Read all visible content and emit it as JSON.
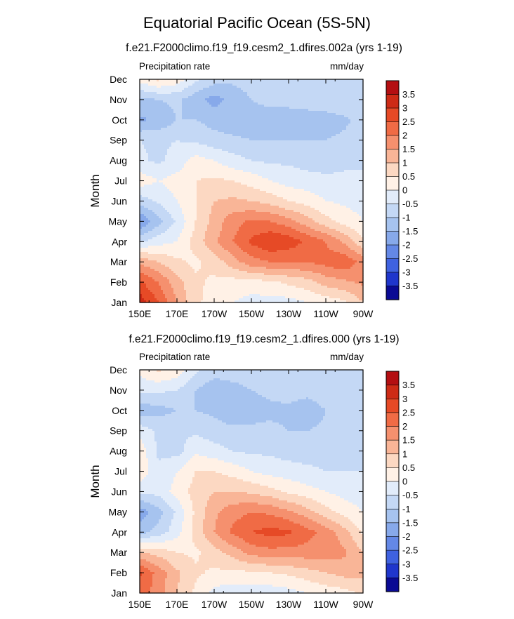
{
  "figure": {
    "title": "Equatorial Pacific Ocean (5S-5N)"
  },
  "colorbar": {
    "tick_labels": [
      "3.5",
      "3",
      "2.5",
      "2",
      "1.5",
      "1",
      "0.5",
      "0",
      "-0.5",
      "-1",
      "-1.5",
      "-2",
      "-2.5",
      "-3",
      "-3.5"
    ],
    "colors": [
      "#b40f12",
      "#cd2b16",
      "#e64a26",
      "#f06b45",
      "#f5906e",
      "#f9b597",
      "#fcd8c2",
      "#fff1e6",
      "#e2ecfa",
      "#c4d8f5",
      "#a6c3ef",
      "#87a9ea",
      "#6488e6",
      "#3f62e0",
      "#1f36cc",
      "#0a0a94"
    ]
  },
  "chart_data": [
    {
      "type": "heatmap",
      "title": "f.e21.F2000climo.f19_f19.cesm2_1.dfires.002a (yrs 1-19)",
      "field_label": "Precipitation rate",
      "units": "mm/day",
      "xlabel": "",
      "ylabel": "Month",
      "x_ticks": [
        "150E",
        "170E",
        "170W",
        "150W",
        "130W",
        "110W",
        "90W"
      ],
      "y_ticks": [
        "Jan",
        "Feb",
        "Mar",
        "Apr",
        "May",
        "Jun",
        "Jul",
        "Aug",
        "Sep",
        "Oct",
        "Nov",
        "Dec"
      ],
      "x": [
        "150E",
        "160E",
        "170E",
        "180",
        "170W",
        "160W",
        "150W",
        "140W",
        "130W",
        "120W",
        "110W",
        "100W",
        "90W"
      ],
      "y": [
        "Jan",
        "Feb",
        "Mar",
        "Apr",
        "May",
        "Jun",
        "Jul",
        "Aug",
        "Sep",
        "Oct",
        "Nov",
        "Dec"
      ],
      "values": [
        [
          3.3,
          2.5,
          1.5,
          0.6,
          0.3,
          0.0,
          -0.2,
          -0.2,
          -0.2,
          0.0,
          0.2,
          0.4,
          1.0
        ],
        [
          2.6,
          2.0,
          1.2,
          0.6,
          0.4,
          0.3,
          0.3,
          0.4,
          0.6,
          0.8,
          1.2,
          1.4,
          1.6
        ],
        [
          1.4,
          1.0,
          0.6,
          0.4,
          0.7,
          1.3,
          1.8,
          2.0,
          2.0,
          2.0,
          2.2,
          2.4,
          1.8
        ],
        [
          -0.6,
          -0.2,
          0.0,
          0.7,
          1.4,
          2.0,
          2.6,
          3.0,
          2.8,
          2.4,
          2.0,
          1.4,
          0.6
        ],
        [
          -2.0,
          -1.2,
          -0.4,
          0.5,
          1.2,
          1.8,
          2.1,
          2.0,
          1.7,
          1.2,
          0.7,
          0.3,
          0.0
        ],
        [
          -0.8,
          -0.4,
          0.0,
          0.5,
          1.0,
          1.1,
          1.0,
          0.8,
          0.5,
          0.3,
          0.0,
          -0.1,
          -0.2
        ],
        [
          0.3,
          0.0,
          0.2,
          0.5,
          0.6,
          0.5,
          0.3,
          0.0,
          -0.2,
          -0.3,
          -0.4,
          -0.4,
          -0.4
        ],
        [
          -0.4,
          -0.6,
          -0.3,
          0.2,
          0.0,
          -0.3,
          -0.5,
          -0.6,
          -0.6,
          -0.7,
          -0.7,
          -0.6,
          -0.6
        ],
        [
          -0.5,
          -0.6,
          -0.5,
          -0.6,
          -0.8,
          -0.9,
          -1.0,
          -1.0,
          -1.0,
          -1.0,
          -1.0,
          -0.9,
          -0.8
        ],
        [
          -1.6,
          -1.4,
          -1.0,
          -1.0,
          -1.2,
          -1.3,
          -1.3,
          -1.3,
          -1.3,
          -1.3,
          -1.2,
          -1.1,
          -0.8
        ],
        [
          -1.1,
          -1.0,
          -0.9,
          -1.3,
          -1.7,
          -1.3,
          -1.0,
          -0.8,
          -0.8,
          -0.7,
          -0.7,
          -0.6,
          -0.6
        ],
        [
          0.2,
          0.6,
          0.3,
          -0.4,
          -0.8,
          -0.9,
          -0.8,
          -0.5,
          -0.5,
          -0.5,
          -0.5,
          -0.5,
          -0.5
        ]
      ],
      "units_label": "mm/day",
      "level_ticks": [
        "3.5",
        "3",
        "2.5",
        "2",
        "1.5",
        "1",
        "0.5",
        "0",
        "-0.5",
        "-1",
        "-1.5",
        "-2",
        "-2.5",
        "-3",
        "-3.5"
      ]
    },
    {
      "type": "heatmap",
      "title": "f.e21.F2000climo.f19_f19.cesm2_1.dfires.000 (yrs 1-19)",
      "field_label": "Precipitation rate",
      "units": "mm/day",
      "xlabel": "",
      "ylabel": "Month",
      "x_ticks": [
        "150E",
        "170E",
        "170W",
        "150W",
        "130W",
        "110W",
        "90W"
      ],
      "y_ticks": [
        "Jan",
        "Feb",
        "Mar",
        "Apr",
        "May",
        "Jun",
        "Jul",
        "Aug",
        "Sep",
        "Oct",
        "Nov",
        "Dec"
      ],
      "x": [
        "150E",
        "160E",
        "170E",
        "180",
        "170W",
        "160W",
        "150W",
        "140W",
        "130W",
        "120W",
        "110W",
        "100W",
        "90W"
      ],
      "y": [
        "Jan",
        "Feb",
        "Mar",
        "Apr",
        "May",
        "Jun",
        "Jul",
        "Aug",
        "Sep",
        "Oct",
        "Nov",
        "Dec"
      ],
      "values": [
        [
          2.2,
          1.8,
          1.0,
          0.4,
          -0.2,
          -0.3,
          -0.3,
          -0.3,
          -0.2,
          0.0,
          0.2,
          0.3,
          0.6
        ],
        [
          2.6,
          1.8,
          1.1,
          0.6,
          0.4,
          0.4,
          0.4,
          0.5,
          0.6,
          0.8,
          1.0,
          1.2,
          1.2
        ],
        [
          1.0,
          0.8,
          0.5,
          0.4,
          0.8,
          1.2,
          1.7,
          1.8,
          1.8,
          1.8,
          1.8,
          1.6,
          1.0
        ],
        [
          -1.2,
          -0.8,
          -0.2,
          0.7,
          1.5,
          2.1,
          2.5,
          2.7,
          2.6,
          2.2,
          1.8,
          1.2,
          0.4
        ],
        [
          -1.8,
          -1.2,
          -0.4,
          0.6,
          1.4,
          1.8,
          2.0,
          1.9,
          1.6,
          1.2,
          0.7,
          0.3,
          0.0
        ],
        [
          -0.4,
          -0.3,
          0.2,
          0.7,
          1.0,
          1.0,
          0.9,
          0.7,
          0.4,
          0.2,
          0.0,
          -0.2,
          -0.3
        ],
        [
          0.4,
          -0.4,
          0.0,
          0.5,
          0.5,
          0.3,
          0.0,
          -0.2,
          -0.3,
          -0.4,
          -0.5,
          -0.5,
          -0.5
        ],
        [
          0.3,
          -0.6,
          -0.7,
          -0.1,
          -0.3,
          -0.5,
          -0.6,
          -0.6,
          -0.7,
          -0.7,
          -0.7,
          -0.7,
          -0.6
        ],
        [
          -0.2,
          -0.6,
          -0.6,
          -0.6,
          -0.8,
          -0.9,
          -0.9,
          -0.9,
          -1.0,
          -1.0,
          -0.9,
          -0.8,
          -0.7
        ],
        [
          -1.3,
          -1.2,
          -1.0,
          -1.0,
          -1.1,
          -1.3,
          -1.2,
          -1.1,
          -1.1,
          -1.3,
          -1.0,
          -0.9,
          -0.8
        ],
        [
          -0.4,
          -0.4,
          -0.5,
          -1.0,
          -1.4,
          -1.2,
          -1.0,
          -0.9,
          -0.8,
          -0.8,
          -0.7,
          -0.7,
          -0.6
        ],
        [
          0.2,
          0.6,
          0.3,
          -0.4,
          -0.7,
          -0.7,
          -0.7,
          -0.6,
          -0.5,
          -0.5,
          -0.5,
          -0.5,
          -0.5
        ]
      ],
      "units_label": "mm/day",
      "level_ticks": [
        "3.5",
        "3",
        "2.5",
        "2",
        "1.5",
        "1",
        "0.5",
        "0",
        "-0.5",
        "-1",
        "-1.5",
        "-2",
        "-2.5",
        "-3",
        "-3.5"
      ]
    }
  ]
}
